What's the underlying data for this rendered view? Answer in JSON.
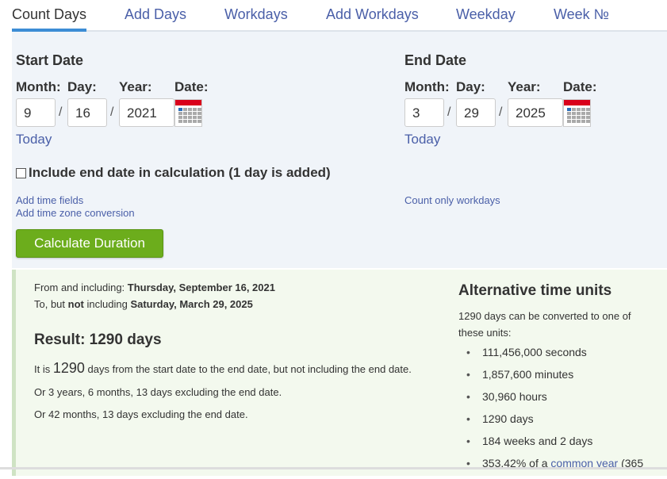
{
  "tabs": [
    {
      "label": "Count Days",
      "active": true
    },
    {
      "label": "Add Days"
    },
    {
      "label": "Workdays"
    },
    {
      "label": "Add Workdays"
    },
    {
      "label": "Weekday"
    },
    {
      "label": "Week №"
    }
  ],
  "start": {
    "title": "Start Date",
    "month_label": "Month:",
    "day_label": "Day:",
    "year_label": "Year:",
    "date_label": "Date:",
    "month": "9",
    "day": "16",
    "year": "2021",
    "today": "Today",
    "slash": "/"
  },
  "end": {
    "title": "End Date",
    "month_label": "Month:",
    "day_label": "Day:",
    "year_label": "Year:",
    "date_label": "Date:",
    "month": "3",
    "day": "29",
    "year": "2025",
    "today": "Today",
    "slash": "/"
  },
  "include_end": {
    "label": "Include end date in calculation (1 day is added)",
    "checked": false
  },
  "links": {
    "add_time": "Add time fields",
    "add_tz": "Add time zone conversion",
    "workdays_only": "Count only workdays"
  },
  "calculate": "Calculate Duration",
  "result": {
    "from_prefix": "From and including:",
    "from_date": "Thursday, September 16, 2021",
    "to_prefix": "To, but",
    "to_not": "not",
    "to_mid": "including",
    "to_date": "Saturday, March 29, 2025",
    "heading": "Result: 1290 days",
    "line1_a": "It is",
    "line1_num": "1290",
    "line1_b": "days from the start date to the end date, but not including the end date.",
    "line2": "Or 3 years, 6 months, 13 days excluding the end date.",
    "line3": "Or 42 months, 13 days excluding the end date."
  },
  "alt": {
    "heading": "Alternative time units",
    "intro": "1290 days can be converted to one of these units:",
    "items": [
      "111,456,000 seconds",
      "1,857,600 minutes",
      "30,960 hours",
      "1290 days",
      "184 weeks and 2 days"
    ],
    "last_prefix": "353.42% of a",
    "last_link": "common year",
    "last_suffix": "(365"
  },
  "colors": {
    "accent": "#3c8dd5",
    "link": "#4a5fa8",
    "button": "#6cad1c",
    "calendar_red": "#d9001b"
  }
}
